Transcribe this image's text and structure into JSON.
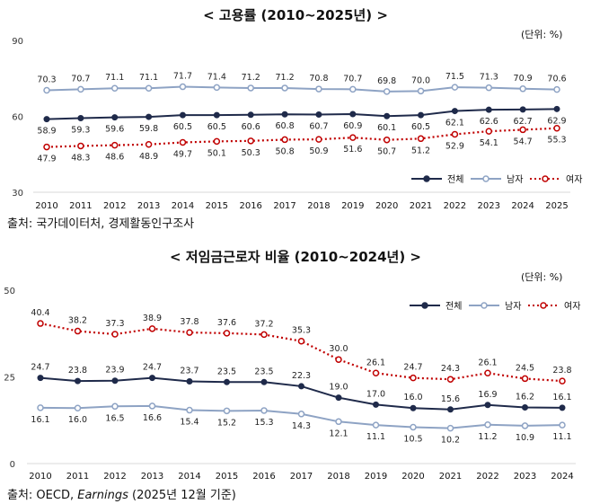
{
  "chart1": {
    "title": "< 고용률 (2010~2025년) >",
    "unit": "(단위: %)",
    "source": "출처: 국가데이터처, 경제활동인구조사",
    "chart_data": {
      "type": "line",
      "title": "고용률 (2010~2025년)",
      "categories": [
        "2010",
        "2011",
        "2012",
        "2013",
        "2014",
        "2015",
        "2016",
        "2017",
        "2018",
        "2019",
        "2020",
        "2021",
        "2022",
        "2023",
        "2024",
        "2025"
      ],
      "ylim": [
        30,
        90
      ],
      "yticks": [
        "30",
        "60",
        "90"
      ],
      "legend_position": "bottom-right",
      "series": [
        {
          "name": "전체",
          "color": "#1f2a4a",
          "style": "solid",
          "labels_position": "below",
          "values": [
            58.9,
            59.3,
            59.6,
            59.8,
            60.5,
            60.5,
            60.6,
            60.8,
            60.7,
            60.9,
            60.1,
            60.5,
            62.1,
            62.6,
            62.7,
            62.9
          ]
        },
        {
          "name": "남자",
          "color": "#8ea3c4",
          "style": "solid",
          "labels_position": "above",
          "values": [
            70.3,
            70.7,
            71.1,
            71.1,
            71.7,
            71.4,
            71.2,
            71.2,
            70.8,
            70.7,
            69.8,
            70.0,
            71.5,
            71.3,
            70.9,
            70.6
          ]
        },
        {
          "name": "여자",
          "color": "#c00000",
          "style": "dotted",
          "labels_position": "below",
          "values": [
            47.9,
            48.3,
            48.6,
            48.9,
            49.7,
            50.1,
            50.3,
            50.8,
            50.9,
            51.6,
            50.7,
            51.2,
            52.9,
            54.1,
            54.7,
            55.3
          ]
        }
      ]
    }
  },
  "chart2": {
    "title": "< 저임금근로자 비율 (2010~2024년) >",
    "unit": "(단위: %)",
    "source_prefix": "출처: OECD, ",
    "source_italic": "Earnings",
    "source_suffix": " (2025년 12월 기준)",
    "chart_data": {
      "type": "line",
      "title": "저임금근로자 비율 (2010~2024년)",
      "categories": [
        "2010",
        "2011",
        "2012",
        "2013",
        "2014",
        "2015",
        "2016",
        "2017",
        "2018",
        "2019",
        "2020",
        "2021",
        "2022",
        "2023",
        "2024"
      ],
      "ylim": [
        0,
        50
      ],
      "yticks": [
        "0",
        "25",
        "50"
      ],
      "legend_position": "top-right",
      "series": [
        {
          "name": "전체",
          "color": "#1f2a4a",
          "style": "solid",
          "labels_position": "above",
          "values": [
            24.7,
            23.8,
            23.9,
            24.7,
            23.7,
            23.5,
            23.5,
            22.3,
            19.0,
            17.0,
            16.0,
            15.6,
            16.9,
            16.2,
            16.1
          ]
        },
        {
          "name": "남자",
          "color": "#8ea3c4",
          "style": "solid",
          "labels_position": "below",
          "values": [
            16.1,
            16.0,
            16.5,
            16.6,
            15.4,
            15.2,
            15.3,
            14.3,
            12.1,
            11.1,
            10.5,
            10.2,
            11.2,
            10.9,
            11.1
          ]
        },
        {
          "name": "여자",
          "color": "#c00000",
          "style": "dotted",
          "labels_position": "above",
          "values": [
            40.4,
            38.2,
            37.3,
            38.9,
            37.8,
            37.6,
            37.2,
            35.3,
            30.0,
            26.1,
            24.7,
            24.3,
            26.1,
            24.5,
            23.8
          ]
        }
      ]
    }
  }
}
